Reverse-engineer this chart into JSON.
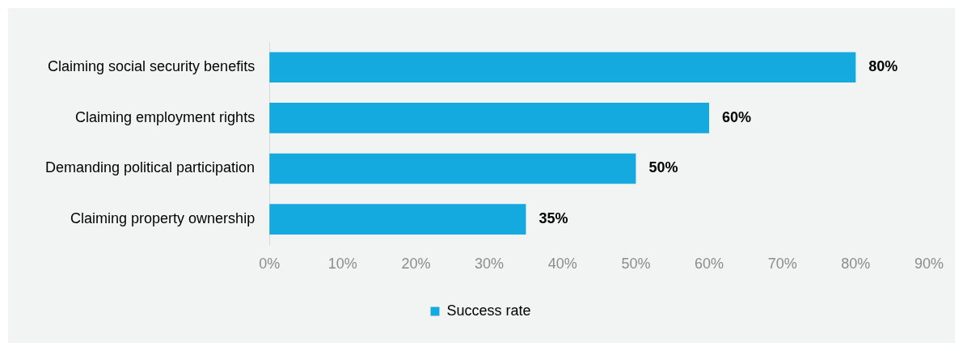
{
  "chart_data": {
    "type": "bar",
    "orientation": "horizontal",
    "categories": [
      "Claiming social security benefits",
      "Claiming employment rights",
      "Demanding political participation",
      "Claiming property ownership"
    ],
    "series": [
      {
        "name": "Success rate",
        "color": "#14a9df",
        "values": [
          80,
          60,
          50,
          35
        ],
        "value_labels": [
          "80%",
          "60%",
          "50%",
          "35%"
        ]
      }
    ],
    "xlim": [
      0,
      90
    ],
    "xticks": [
      {
        "value": 0,
        "label": "0%"
      },
      {
        "value": 10,
        "label": "10%"
      },
      {
        "value": 20,
        "label": "20%"
      },
      {
        "value": 30,
        "label": "30%"
      },
      {
        "value": 40,
        "label": "40%"
      },
      {
        "value": 50,
        "label": "50%"
      },
      {
        "value": 60,
        "label": "60%"
      },
      {
        "value": 70,
        "label": "70%"
      },
      {
        "value": 80,
        "label": "80%"
      },
      {
        "value": 90,
        "label": "90%"
      }
    ],
    "grid": false,
    "legend": "bottom"
  }
}
